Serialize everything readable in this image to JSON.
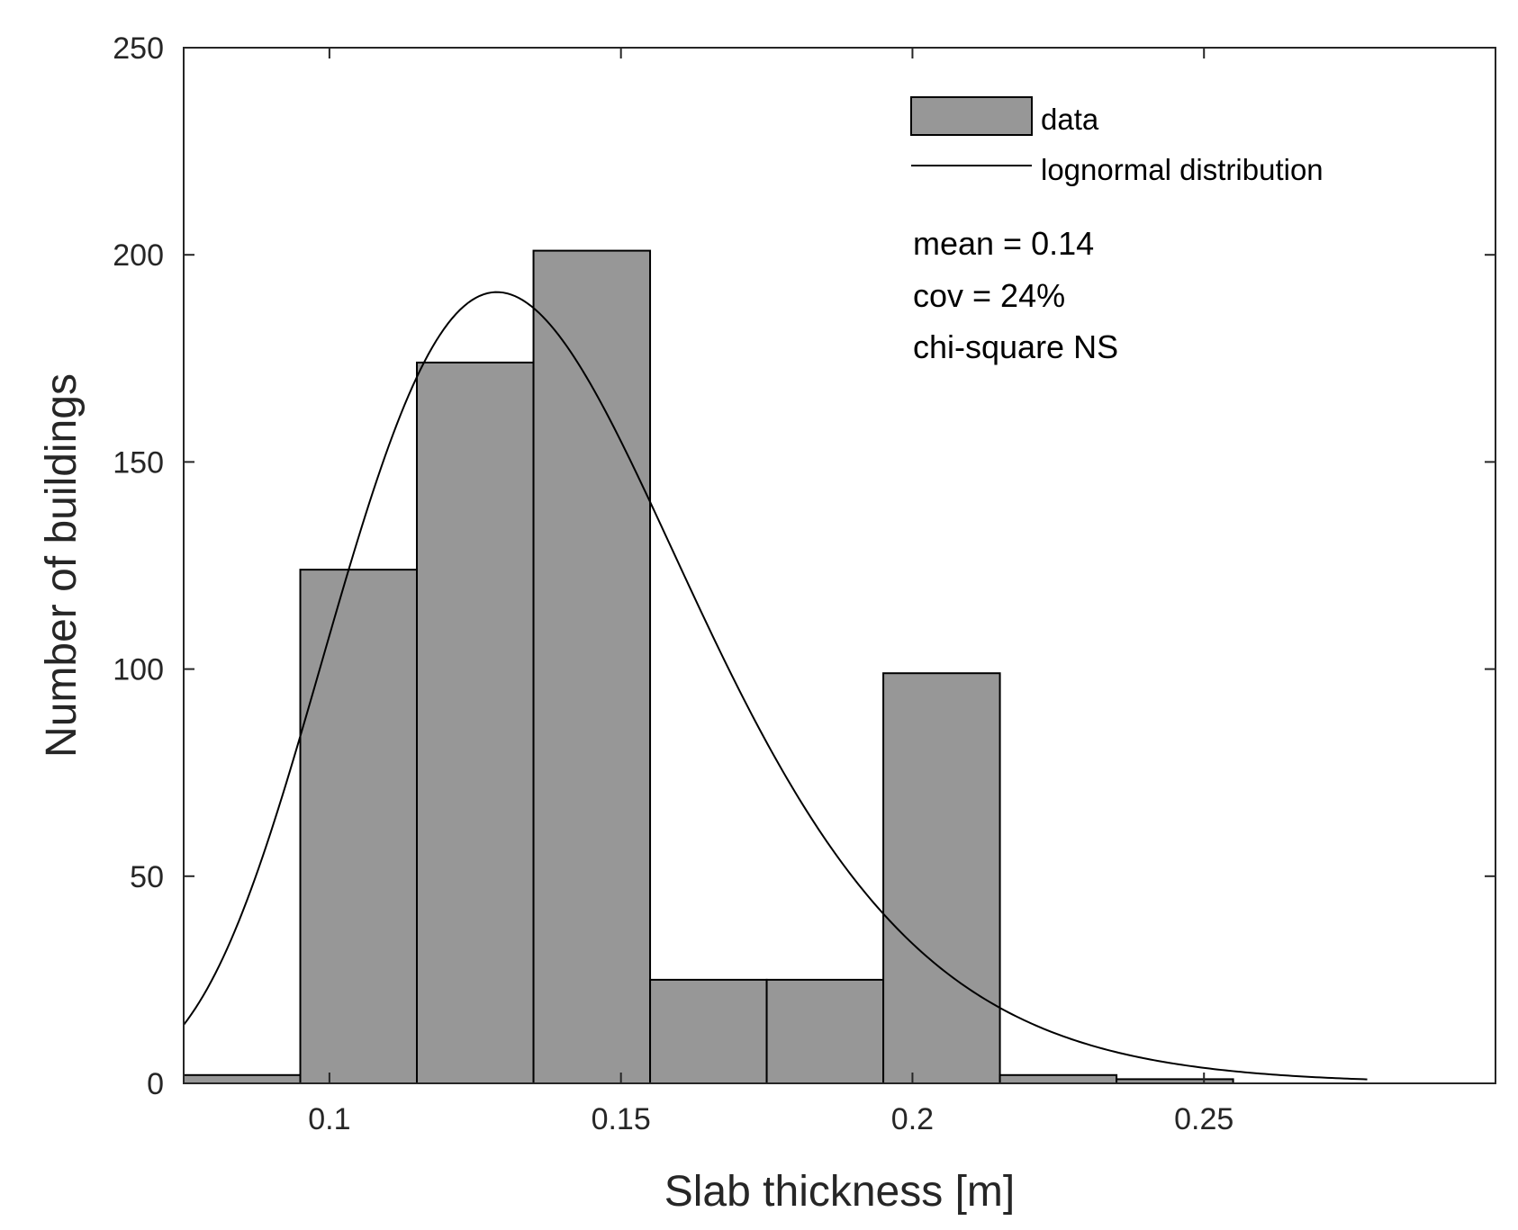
{
  "chart_data": {
    "type": "bar",
    "subtype": "histogram",
    "title": "",
    "xlabel": "Slab thickness [m]",
    "ylabel": "Number of buildings",
    "xlim": [
      0.075,
      0.3
    ],
    "ylim": [
      0,
      250
    ],
    "xticks": [
      0.1,
      0.15,
      0.2,
      0.25
    ],
    "xtick_labels": [
      "0.1",
      "0.15",
      "0.2",
      "0.25"
    ],
    "yticks": [
      0,
      50,
      100,
      150,
      200,
      250
    ],
    "ytick_labels": [
      "0",
      "50",
      "100",
      "150",
      "200",
      "250"
    ],
    "grid": false,
    "bins": [
      {
        "x0": 0.075,
        "x1": 0.095,
        "count": 2
      },
      {
        "x0": 0.095,
        "x1": 0.115,
        "count": 124
      },
      {
        "x0": 0.115,
        "x1": 0.135,
        "count": 174
      },
      {
        "x0": 0.135,
        "x1": 0.155,
        "count": 201
      },
      {
        "x0": 0.155,
        "x1": 0.175,
        "count": 25
      },
      {
        "x0": 0.175,
        "x1": 0.195,
        "count": 25
      },
      {
        "x0": 0.195,
        "x1": 0.215,
        "count": 99
      },
      {
        "x0": 0.215,
        "x1": 0.235,
        "count": 2
      },
      {
        "x0": 0.235,
        "x1": 0.255,
        "count": 1
      }
    ],
    "fit_curve": {
      "name": "lognormal distribution",
      "distribution": "lognormal",
      "mean": 0.14,
      "cov": 0.24,
      "x_range": [
        0.075,
        0.278
      ],
      "peak_count": 191
    },
    "legend": {
      "position": "top-right",
      "entries": [
        "data",
        "lognormal distribution"
      ]
    },
    "annotations": [
      "mean = 0.14",
      "cov = 24%",
      "chi-square NS"
    ],
    "colors": {
      "bar_fill": "#979797",
      "bar_edge": "#000000",
      "curve": "#000000",
      "axes": "#262626"
    }
  }
}
